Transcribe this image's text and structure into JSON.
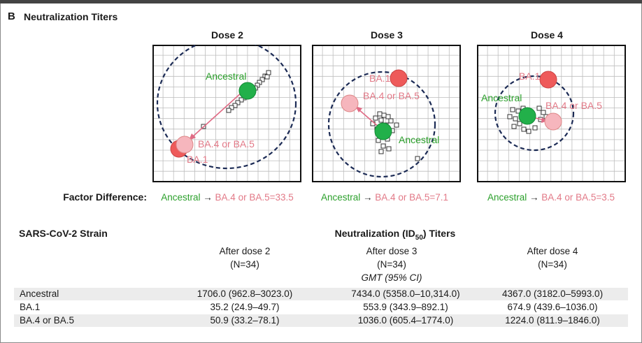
{
  "panel": {
    "letter": "B",
    "title": "Neutralization Titers"
  },
  "maps": [
    {
      "title": "Dose 2",
      "labels": {
        "ancestral": "Ancestral",
        "ba1": "BA.1",
        "ba45": "BA.4 or BA.5"
      }
    },
    {
      "title": "Dose 3",
      "labels": {
        "ancestral": "Ancestral",
        "ba1": "BA.1",
        "ba45": "BA.4 or BA.5"
      }
    },
    {
      "title": "Dose 4",
      "labels": {
        "ancestral": "Ancestral",
        "ba1": "BA.1",
        "ba45": "BA.4 or BA.5"
      }
    }
  ],
  "factor_difference": {
    "label": "Factor Difference:",
    "items": [
      {
        "from": "Ancestral",
        "arrow": "→",
        "to": "BA.4 or BA.5=33.5"
      },
      {
        "from": "Ancestral",
        "arrow": "→",
        "to": "BA.4 or BA.5=7.1"
      },
      {
        "from": "Ancestral",
        "arrow": "→",
        "to": "BA.4 or BA.5=3.5"
      }
    ]
  },
  "table": {
    "strain_header": "SARS-CoV-2 Strain",
    "titer_header_pre": "Neutralization (ID",
    "titer_header_sub": "50",
    "titer_header_post": ") Titers",
    "columns": [
      {
        "label": "After dose 2",
        "n": "(N=34)"
      },
      {
        "label": "After dose 3",
        "n": "(N=34)"
      },
      {
        "label": "After dose 4",
        "n": "(N=34)"
      }
    ],
    "gmt_label": "GMT (95% CI)",
    "rows": [
      {
        "strain": "Ancestral",
        "values": [
          "1706.0 (962.8–3023.0)",
          "7434.0 (5358.0–10,314.0)",
          "4367.0 (3182.0–5993.0)"
        ]
      },
      {
        "strain": "BA.1",
        "values": [
          "35.2 (24.9–49.7)",
          "553.9 (343.9–892.1)",
          "674.9 (439.6–1036.0)"
        ]
      },
      {
        "strain": "BA.4 or BA.5",
        "values": [
          "50.9 (33.2–78.1)",
          "1036.0 (605.4–1774.0)",
          "1224.0 (811.9–1846.0)"
        ]
      }
    ]
  },
  "chart_data": {
    "type": "scatter",
    "title": "Neutralization Titers",
    "colors": {
      "ancestral": "#22b04a",
      "ba1": "#ee5a5a",
      "ba45": "#f6b6bd",
      "circle": "#1c2b55",
      "grid": "#b9b9b9",
      "arrow": "#e06b85"
    },
    "factor_differences": [
      33.5,
      7.1,
      3.5
    ]
  }
}
